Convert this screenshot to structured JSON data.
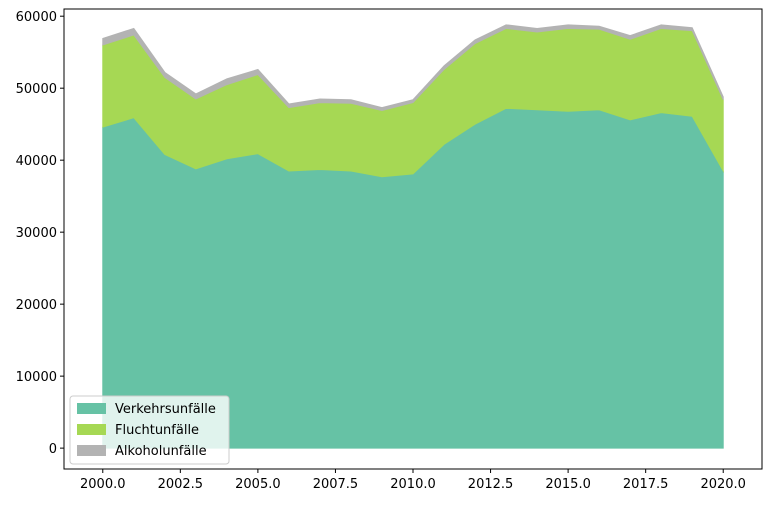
{
  "chart_data": {
    "type": "area",
    "stacked": true,
    "x": [
      2000,
      2001,
      2002,
      2003,
      2004,
      2005,
      2006,
      2007,
      2008,
      2009,
      2010,
      2011,
      2012,
      2013,
      2014,
      2015,
      2016,
      2017,
      2018,
      2019,
      2020
    ],
    "series": [
      {
        "name": "Verkehrsunfälle",
        "color": "#66c2a5",
        "values": [
          44600,
          45900,
          40800,
          38800,
          40200,
          40900,
          38500,
          38700,
          38500,
          37700,
          38100,
          42200,
          45000,
          47200,
          47000,
          46800,
          47000,
          45600,
          46600,
          46100,
          38500
        ]
      },
      {
        "name": "Fluchtunfälle",
        "color": "#a6d854",
        "values": [
          11400,
          11500,
          10700,
          9700,
          10300,
          11000,
          8800,
          9300,
          9400,
          9200,
          9900,
          10400,
          11200,
          11100,
          10800,
          11500,
          11200,
          11200,
          11700,
          11900,
          9900
        ]
      },
      {
        "name": "Alkoholunfälle",
        "color": "#b3b3b3",
        "values": [
          900,
          900,
          700,
          700,
          800,
          700,
          500,
          500,
          500,
          400,
          400,
          500,
          500,
          500,
          500,
          500,
          400,
          500,
          500,
          400,
          400
        ]
      }
    ],
    "title": "",
    "xlabel": "",
    "ylabel": "",
    "xlim": [
      1998.75,
      2021.25
    ],
    "ylim": [
      -2900,
      61000
    ],
    "xticks": [
      2000,
      2002.5,
      2005,
      2007.5,
      2010,
      2012.5,
      2015,
      2017.5,
      2020
    ],
    "xtick_labels": [
      "2000.0",
      "2002.5",
      "2005.0",
      "2007.5",
      "2010.0",
      "2012.5",
      "2015.0",
      "2017.5",
      "2020.0"
    ],
    "yticks": [
      0,
      10000,
      20000,
      30000,
      40000,
      50000,
      60000
    ],
    "ytick_labels": [
      "0",
      "10000",
      "20000",
      "30000",
      "40000",
      "50000",
      "60000"
    ],
    "grid": false,
    "legend": {
      "location": "lower-left",
      "entries": [
        "Verkehrsunfälle",
        "Fluchtunfälle",
        "Alkoholunfälle"
      ]
    }
  }
}
